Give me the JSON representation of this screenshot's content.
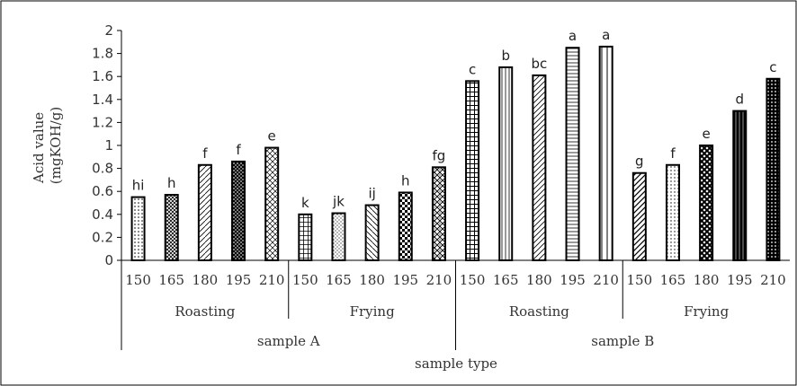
{
  "chart_data": {
    "type": "bar",
    "title": "",
    "ylabel": "Acid value (mgKOH/g)",
    "ylabel_lines": [
      "Acid value",
      "(mgKOH/g)"
    ],
    "xlabel": "sample type",
    "ylim": [
      0,
      2
    ],
    "yticks": [
      "0",
      "0.2",
      "0.4",
      "0.6",
      "0.8",
      "1",
      "1.2",
      "1.4",
      "1.6",
      "1.8",
      "2"
    ],
    "grid": false,
    "legend": "none",
    "samples": [
      "sample A",
      "sample B"
    ],
    "methods": [
      "Roasting",
      "Frying",
      "Roasting",
      "Frying"
    ],
    "categories": [
      "150",
      "165",
      "180",
      "195",
      "210",
      "150",
      "165",
      "180",
      "195",
      "210",
      "150",
      "165",
      "180",
      "195",
      "210",
      "150",
      "165",
      "180",
      "195",
      "210"
    ],
    "values": [
      0.55,
      0.57,
      0.83,
      0.86,
      0.98,
      0.4,
      0.41,
      0.48,
      0.59,
      0.81,
      1.56,
      1.68,
      1.61,
      1.85,
      1.86,
      0.76,
      0.83,
      1.0,
      1.3,
      1.58
    ],
    "significance_letters": [
      "hi",
      "h",
      "f",
      "f",
      "e",
      "k",
      "jk",
      "ij",
      "h",
      "fg",
      "c",
      "b",
      "bc",
      "a",
      "a",
      "g",
      "f",
      "e",
      "d",
      "c"
    ],
    "colors": {
      "stroke": "#000000",
      "axis": "#000000",
      "text": "#333333"
    }
  }
}
